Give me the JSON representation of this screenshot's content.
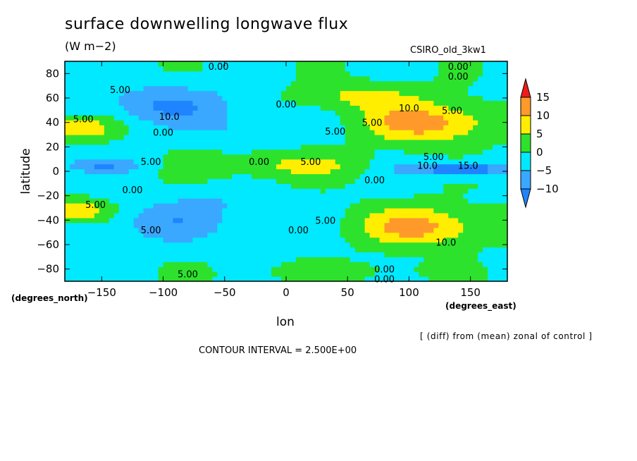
{
  "chart_data": {
    "type": "heatmap",
    "title": "surface downwelling longwave flux",
    "units": "(W m−2)",
    "dataset": "CSIRO_old_3kw1",
    "xlabel": "lon",
    "ylabel": "latitude",
    "x_unit_label": "(degrees_east)",
    "y_unit_label": "(degrees_north)",
    "xlim": [
      -180,
      180
    ],
    "ylim": [
      -90,
      90
    ],
    "x_ticks": [
      -150,
      -100,
      -50,
      0,
      50,
      100,
      150
    ],
    "y_ticks": [
      -80,
      -60,
      -40,
      -20,
      0,
      20,
      40,
      60,
      80
    ],
    "colorbar": {
      "levels": [
        -10,
        -5,
        0,
        5,
        10,
        15
      ],
      "labels": [
        "15",
        "10",
        "5",
        "0",
        "−5",
        "−10"
      ],
      "colors": {
        "below_min": "#1f84ff",
        "neg_10_to_neg_5": "#3aa8ff",
        "neg_5_to_0": "#00e9ff",
        "0_to_5": "#2de22d",
        "5_to_10": "#ffee00",
        "10_to_15": "#ff9a2a",
        "above_15": "#ee1c1c"
      }
    },
    "contour_labels": [
      {
        "text": "0.00",
        "lon": -55,
        "lat": 86
      },
      {
        "text": "0.00",
        "lon": 140,
        "lat": 86
      },
      {
        "text": "0.00",
        "lon": 140,
        "lat": 78
      },
      {
        "text": "5.00",
        "lon": -135,
        "lat": 67
      },
      {
        "text": "0.00",
        "lon": 0,
        "lat": 55
      },
      {
        "text": "10.0",
        "lon": -95,
        "lat": 45
      },
      {
        "text": "10.0",
        "lon": 100,
        "lat": 52
      },
      {
        "text": "5.00",
        "lon": 135,
        "lat": 50
      },
      {
        "text": "5.00",
        "lon": -165,
        "lat": 43
      },
      {
        "text": "5.00",
        "lon": 70,
        "lat": 40
      },
      {
        "text": "5.00",
        "lon": 40,
        "lat": 33
      },
      {
        "text": "0.00",
        "lon": -100,
        "lat": 32
      },
      {
        "text": "5.00",
        "lon": -110,
        "lat": 8
      },
      {
        "text": "0.00",
        "lon": -22,
        "lat": 8
      },
      {
        "text": "5.00",
        "lon": 20,
        "lat": 8
      },
      {
        "text": "5.00",
        "lon": 120,
        "lat": 12
      },
      {
        "text": "10.0",
        "lon": 115,
        "lat": 5
      },
      {
        "text": "15.0",
        "lon": 148,
        "lat": 5
      },
      {
        "text": "0.00",
        "lon": 72,
        "lat": -7
      },
      {
        "text": "0.00",
        "lon": -125,
        "lat": -15
      },
      {
        "text": "5.00",
        "lon": -155,
        "lat": -27
      },
      {
        "text": "5.00",
        "lon": 32,
        "lat": -40
      },
      {
        "text": "0.00",
        "lon": 10,
        "lat": -48
      },
      {
        "text": "5.00",
        "lon": -110,
        "lat": -48
      },
      {
        "text": "10.0",
        "lon": 130,
        "lat": -58
      },
      {
        "text": "5.00",
        "lon": -80,
        "lat": -84
      },
      {
        "text": "0.00",
        "lon": 80,
        "lat": -80
      },
      {
        "text": "0.00",
        "lon": 80,
        "lat": -88
      }
    ]
  },
  "footnote": "[ (diff) from (mean) zonal of control ]",
  "contour_interval": "CONTOUR INTERVAL = 2.500E+00"
}
